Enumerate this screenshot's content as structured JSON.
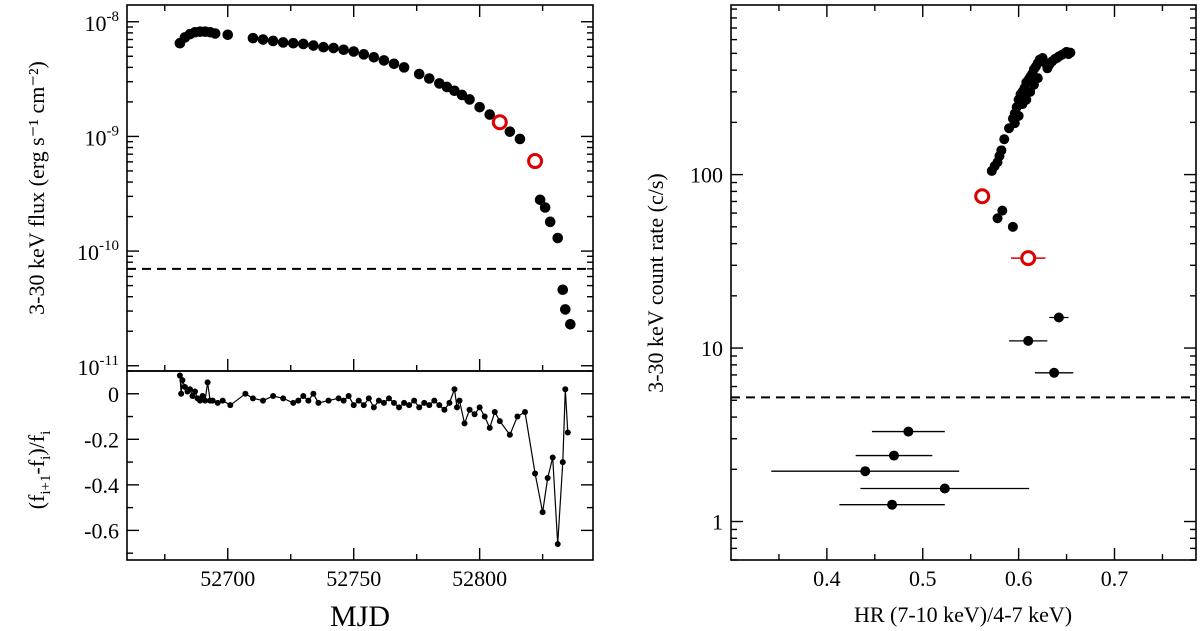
{
  "chart_data": [
    {
      "id": "flux",
      "type": "scatter",
      "title": "",
      "xlabel": "",
      "ylabel": "3-30 keV flux (erg s⁻¹ cm⁻²)",
      "yscale": "log",
      "xlim": [
        52660,
        52845
      ],
      "ylim": [
        9e-12,
        1.4e-08
      ],
      "y_ticks": [
        {
          "value": 1e-08,
          "mant": "10",
          "exp": "-8"
        },
        {
          "value": 1e-09,
          "mant": "10",
          "exp": "-9"
        },
        {
          "value": 1e-10,
          "mant": "10",
          "exp": "-10"
        },
        {
          "value": 1e-11,
          "mant": "10",
          "exp": "-11"
        }
      ],
      "threshold": 7e-11,
      "series": [
        {
          "name": "flux",
          "x": [
            52681,
            52683,
            52685,
            52687,
            52689,
            52691,
            52693,
            52695,
            52700,
            52710,
            52714,
            52718,
            52722,
            52726,
            52730,
            52734,
            52738,
            52742,
            52746,
            52750,
            52754,
            52758,
            52762,
            52766,
            52770,
            52776,
            52780,
            52784,
            52787,
            52790,
            52793,
            52796,
            52800,
            52804,
            52812,
            52816,
            52824,
            52826,
            52828,
            52831,
            52833,
            52834,
            52836
          ],
          "y": [
            6.5e-09,
            7.3e-09,
            7.8e-09,
            8.1e-09,
            8.2e-09,
            8.2e-09,
            8.1e-09,
            7.9e-09,
            7.7e-09,
            7.2e-09,
            7e-09,
            6.8e-09,
            6.6e-09,
            6.5e-09,
            6.4e-09,
            6.2e-09,
            6e-09,
            5.9e-09,
            5.7e-09,
            5.5e-09,
            5.2e-09,
            4.9e-09,
            4.6e-09,
            4.3e-09,
            4e-09,
            3.5e-09,
            3.2e-09,
            2.9e-09,
            2.7e-09,
            2.5e-09,
            2.3e-09,
            2.1e-09,
            1.8e-09,
            1.55e-09,
            1.1e-09,
            9.5e-10,
            2.8e-10,
            2.4e-10,
            1.8e-10,
            1.3e-10,
            4.6e-11,
            3.1e-11,
            2.3e-11
          ]
        },
        {
          "name": "flux-highlighted",
          "style": "open-red",
          "x": [
            52808,
            52822
          ],
          "y": [
            1.33e-09,
            6.1e-10
          ]
        }
      ]
    },
    {
      "id": "diff",
      "type": "line",
      "xlabel": "MJD",
      "ylabel": "(f<sub>i+1</sub>-f<sub>i</sub>)/f<sub>i</sub>",
      "ylabel_parts": [
        "(f",
        "i+1",
        "-f",
        "i",
        ")/f",
        "i"
      ],
      "xlim": [
        52660,
        52845
      ],
      "ylim": [
        -0.73,
        0.1
      ],
      "x_ticks": [
        52700,
        52750,
        52800
      ],
      "y_ticks": [
        "0",
        "-0.2",
        "-0.4",
        "-0.6"
      ],
      "y_tick_values": [
        0,
        -0.2,
        -0.4,
        -0.6
      ],
      "series": [
        {
          "name": "relative change",
          "x": [
            52681,
            52681.5,
            52682,
            52683,
            52684,
            52685,
            52686,
            52687,
            52688,
            52689,
            52690,
            52691,
            52692,
            52693,
            52694,
            52696,
            52698,
            52701,
            52707,
            52710,
            52714,
            52718,
            52722,
            52726,
            52728,
            52730,
            52732,
            52734,
            52736,
            52740,
            52744,
            52746,
            52748,
            52750,
            52752,
            52754,
            52756,
            52758,
            52760,
            52762,
            52764,
            52766,
            52768,
            52770,
            52772,
            52774,
            52776,
            52778,
            52780,
            52782,
            52784,
            52786,
            52788,
            52790,
            52791,
            52792,
            52794,
            52796,
            52798,
            52800,
            52802,
            52804,
            52806,
            52808,
            52812,
            52815,
            52818,
            52822,
            52825,
            52827,
            52829,
            52831,
            52833,
            52834,
            52835
          ],
          "y": [
            0.08,
            0.0,
            0.06,
            0.03,
            0.01,
            0.02,
            -0.01,
            0.01,
            -0.02,
            -0.03,
            -0.01,
            -0.03,
            0.05,
            -0.03,
            -0.03,
            -0.04,
            -0.03,
            -0.05,
            0.0,
            -0.02,
            -0.03,
            -0.01,
            -0.02,
            -0.04,
            -0.03,
            -0.01,
            -0.03,
            0.0,
            -0.04,
            -0.03,
            -0.02,
            -0.03,
            -0.01,
            -0.05,
            -0.03,
            -0.05,
            -0.02,
            -0.06,
            -0.03,
            -0.04,
            -0.02,
            -0.04,
            -0.06,
            -0.04,
            -0.05,
            -0.03,
            -0.06,
            -0.04,
            -0.05,
            -0.03,
            -0.05,
            -0.07,
            -0.04,
            0.02,
            -0.06,
            -0.03,
            -0.13,
            -0.07,
            -0.09,
            -0.06,
            -0.1,
            -0.15,
            -0.08,
            -0.12,
            -0.18,
            -0.1,
            -0.08,
            -0.35,
            -0.52,
            -0.37,
            -0.28,
            -0.66,
            -0.3,
            0.02,
            -0.17
          ]
        }
      ]
    },
    {
      "id": "hr",
      "type": "scatter",
      "xlabel": "HR (7-10 keV)/4-7 keV)",
      "ylabel": "3-30 keV count rate (c/s)",
      "yscale": "log",
      "xlim": [
        0.3,
        0.785
      ],
      "ylim": [
        0.6,
        950
      ],
      "x_ticks": [
        0.4,
        0.5,
        0.6,
        0.7
      ],
      "x_tick_labels": [
        "0.4",
        "0.5",
        "0.6",
        "0.7"
      ],
      "y_ticks": [
        1,
        10,
        100
      ],
      "y_tick_labels": [
        "1",
        "10",
        "100"
      ],
      "threshold": 5.2,
      "series": [
        {
          "name": "bright",
          "x": [
            0.572,
            0.575,
            0.578,
            0.58,
            0.582,
            0.585,
            0.59,
            0.594,
            0.596,
            0.598,
            0.6,
            0.602,
            0.604,
            0.606,
            0.608,
            0.61,
            0.612,
            0.614,
            0.616,
            0.618,
            0.62,
            0.622,
            0.625,
            0.628,
            0.63,
            0.632,
            0.635,
            0.638,
            0.64,
            0.642,
            0.645,
            0.648,
            0.65,
            0.652,
            0.654,
            0.596,
            0.6,
            0.604,
            0.608,
            0.612,
            0.616,
            0.62
          ],
          "y": [
            105,
            112,
            118,
            128,
            138,
            160,
            185,
            210,
            225,
            245,
            270,
            290,
            300,
            315,
            340,
            350,
            365,
            380,
            405,
            420,
            440,
            460,
            470,
            440,
            410,
            430,
            450,
            465,
            470,
            480,
            490,
            500,
            510,
            495,
            505,
            198,
            218,
            255,
            270,
            300,
            330,
            360
          ]
        },
        {
          "name": "decay",
          "x": [
            0.578,
            0.583,
            0.594,
            0.642,
            0.61,
            0.637,
            0.485,
            0.47,
            0.44,
            0.523,
            0.468
          ],
          "y": [
            56,
            62,
            50,
            15,
            11,
            7.2,
            3.3,
            2.4,
            1.95,
            1.55,
            1.25
          ],
          "xerr": [
            0.004,
            0.004,
            0.003,
            0.01,
            0.02,
            0.02,
            0.038,
            0.04,
            0.098,
            0.088,
            0.055
          ]
        },
        {
          "name": "highlighted",
          "style": "open-red",
          "x": [
            0.562,
            0.61
          ],
          "y": [
            75,
            33
          ],
          "xerr": [
            0,
            0.018
          ]
        }
      ]
    }
  ]
}
